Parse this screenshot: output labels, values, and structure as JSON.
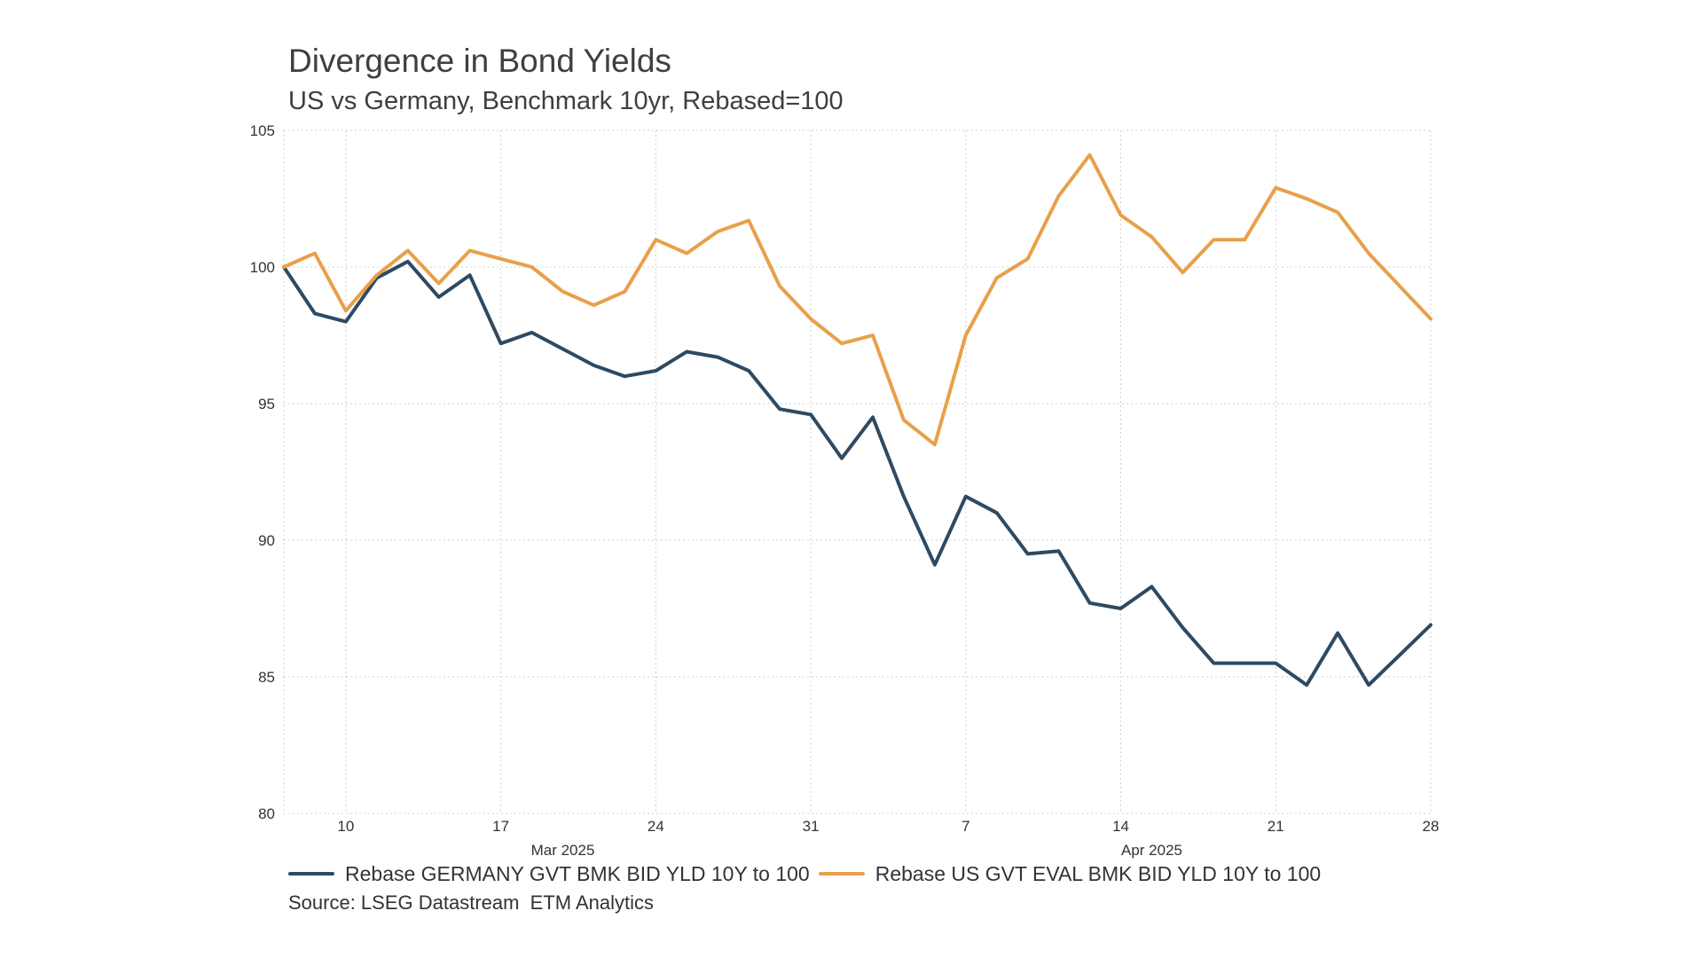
{
  "chart_data": {
    "type": "line",
    "title": "Divergence in Bond Yields",
    "subtitle": "US vs Germany, Benchmark 10yr, Rebased=100",
    "xlabel": "",
    "ylabel": "",
    "ylim": [
      80,
      105
    ],
    "yticks": [
      80,
      85,
      90,
      95,
      100,
      105
    ],
    "x_start_index": -2,
    "x_end_index": 35,
    "xticks": [
      {
        "label": "10",
        "index": 0
      },
      {
        "label": "17",
        "index": 5
      },
      {
        "label": "24",
        "index": 10
      },
      {
        "label": "31",
        "index": 15
      },
      {
        "label": "7",
        "index": 20
      },
      {
        "label": "14",
        "index": 25
      },
      {
        "label": "21",
        "index": 30
      },
      {
        "label": "28",
        "index": 35
      }
    ],
    "month_labels": [
      {
        "label": "Mar 2025",
        "index": 7
      },
      {
        "label": "Apr 2025",
        "index": 26
      }
    ],
    "grid": true,
    "legend_position": "bottom",
    "series": [
      {
        "name": "Rebase GERMANY GVT BMK BID YLD 10Y to 100",
        "color": "#2e4a62",
        "x": [
          -2,
          -1,
          0,
          1,
          2,
          3,
          4,
          5,
          6,
          7,
          8,
          9,
          10,
          11,
          12,
          13,
          14,
          15,
          16,
          17,
          18,
          19,
          20,
          21,
          22,
          23,
          24,
          25,
          26,
          27,
          28,
          29,
          30,
          31,
          32,
          33,
          34,
          35
        ],
        "values": [
          100.0,
          98.3,
          98.0,
          99.6,
          100.2,
          98.9,
          99.7,
          97.2,
          97.6,
          97.0,
          96.4,
          96.0,
          96.2,
          96.9,
          96.7,
          96.2,
          94.8,
          94.6,
          93.0,
          94.5,
          91.6,
          89.1,
          91.6,
          91.0,
          89.5,
          89.6,
          87.7,
          87.5,
          88.3,
          86.8,
          85.5,
          85.5,
          85.5,
          84.7,
          86.6,
          84.7,
          85.8,
          86.9
        ]
      },
      {
        "name": "Rebase US GVT EVAL BMK BID YLD 10Y to 100",
        "color": "#e8a04a",
        "x": [
          -2,
          -1,
          0,
          1,
          2,
          3,
          4,
          5,
          6,
          7,
          8,
          9,
          10,
          11,
          12,
          13,
          14,
          15,
          16,
          17,
          18,
          19,
          20,
          21,
          22,
          23,
          24,
          25,
          26,
          27,
          28,
          29,
          30,
          31,
          32,
          33,
          34,
          35
        ],
        "values": [
          100.0,
          100.5,
          98.4,
          99.7,
          100.6,
          99.4,
          100.6,
          100.3,
          100.0,
          99.1,
          98.6,
          99.1,
          101.0,
          100.5,
          101.3,
          101.7,
          99.3,
          98.1,
          97.2,
          97.5,
          94.4,
          93.5,
          97.5,
          99.6,
          100.3,
          102.6,
          104.1,
          101.9,
          101.1,
          99.8,
          101.0,
          101.0,
          102.9,
          102.5,
          102.0,
          100.5,
          99.3,
          98.1
        ]
      }
    ],
    "source": "Source: LSEG Datastream  ETM Analytics"
  }
}
